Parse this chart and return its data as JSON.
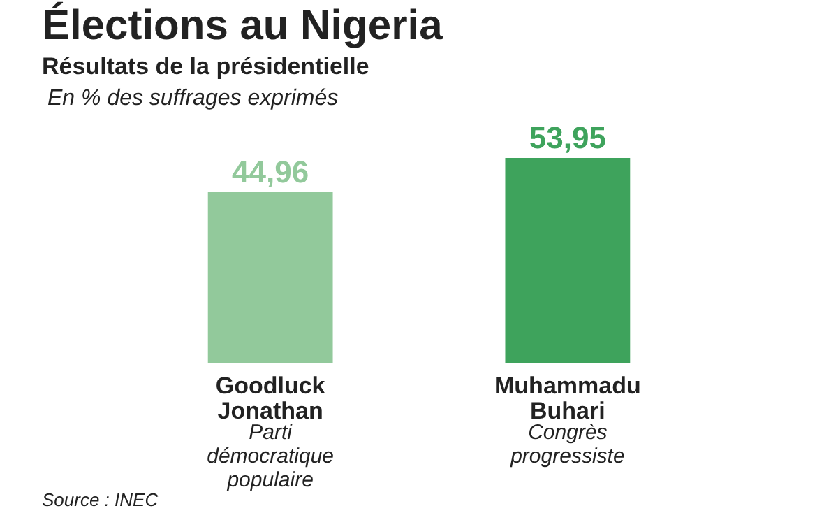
{
  "chart_data": {
    "type": "bar",
    "title": "Élections au Nigeria",
    "subtitle": "Résultats de la présidentielle",
    "categories": [
      "Goodluck Jonathan",
      "Muhammadu Buhari"
    ],
    "values": [
      44.96,
      53.95
    ],
    "colors": [
      "#92c99b",
      "#3ea35c"
    ],
    "value_labels": [
      "44,96",
      "53,95"
    ],
    "annotations": [
      "En % des suffrages exprimés",
      "Parti démocratique populaire",
      "Congrès progressiste",
      "Source : INEC"
    ]
  }
}
